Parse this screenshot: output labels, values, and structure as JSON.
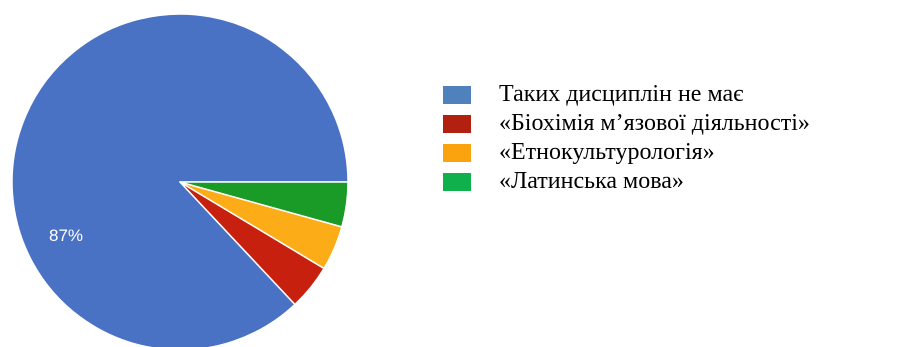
{
  "chart_data": {
    "type": "pie",
    "title": "",
    "legend_position": "right",
    "start_direction": "east, counterclockwise",
    "slices": [
      {
        "label": "Таких дисциплін не має",
        "value": 87,
        "value_label": "87%",
        "color": "#4a72c4"
      },
      {
        "label": "«Біохімія м’язової діяльності»",
        "value": 4.4,
        "value_label": "",
        "color": "#c8200e"
      },
      {
        "label": "«Етнокультурологія»",
        "value": 4.3,
        "value_label": "",
        "color": "#fbac17"
      },
      {
        "label": "«Латинська мова»",
        "value": 4.3,
        "value_label": "",
        "color": "#1a9a26"
      }
    ]
  },
  "legend": {
    "items": [
      {
        "label": "Таких дисциплін не має",
        "color": "#4f81bd"
      },
      {
        "label": "«Біохімія м’язової діяльності»",
        "color": "#b2210f"
      },
      {
        "label": "«Етнокультурологія»",
        "color": "#fba20f"
      },
      {
        "label": "«Латинська мова»",
        "color": "#10b04d"
      }
    ]
  }
}
